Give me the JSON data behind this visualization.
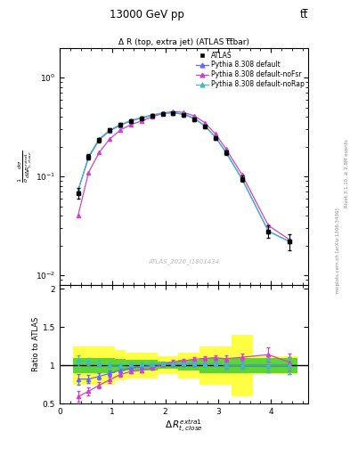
{
  "title_top": "13000 GeV pp",
  "title_top_right": "tt̅",
  "plot_title": "Δ R (top, extra jet) (ATLAS t̅t̅bar)",
  "watermark": "ATLAS_2020_I1801434",
  "right_label": "mcplots.cern.ch [arXiv:1306.3436]",
  "right_label2": "Rivet 3.1.10, ≥ 2.8M events",
  "x_data": [
    0.35,
    0.55,
    0.75,
    0.95,
    1.15,
    1.35,
    1.55,
    1.75,
    1.95,
    2.15,
    2.35,
    2.55,
    2.75,
    2.95,
    3.15,
    3.45,
    3.95,
    4.35
  ],
  "atlas_y": [
    0.068,
    0.16,
    0.235,
    0.295,
    0.335,
    0.365,
    0.39,
    0.415,
    0.43,
    0.435,
    0.42,
    0.38,
    0.32,
    0.245,
    0.175,
    0.095,
    0.028,
    0.022
  ],
  "atlas_yerr": [
    0.008,
    0.01,
    0.012,
    0.012,
    0.012,
    0.013,
    0.013,
    0.013,
    0.014,
    0.014,
    0.013,
    0.013,
    0.012,
    0.011,
    0.01,
    0.007,
    0.004,
    0.004
  ],
  "py_default_y": [
    0.072,
    0.155,
    0.235,
    0.29,
    0.33,
    0.365,
    0.39,
    0.415,
    0.435,
    0.44,
    0.425,
    0.385,
    0.325,
    0.25,
    0.175,
    0.095,
    0.028,
    0.022
  ],
  "py_noFsr_y": [
    0.04,
    0.11,
    0.175,
    0.24,
    0.295,
    0.335,
    0.365,
    0.4,
    0.435,
    0.455,
    0.445,
    0.41,
    0.35,
    0.27,
    0.19,
    0.105,
    0.032,
    0.023
  ],
  "py_noRap_y": [
    0.072,
    0.16,
    0.24,
    0.295,
    0.335,
    0.37,
    0.395,
    0.42,
    0.44,
    0.445,
    0.43,
    0.39,
    0.325,
    0.25,
    0.175,
    0.095,
    0.028,
    0.022
  ],
  "ratio_default": [
    0.82,
    0.82,
    0.855,
    0.895,
    0.935,
    0.965,
    0.98,
    1.0,
    1.01,
    1.01,
    1.012,
    1.013,
    1.016,
    1.02,
    1.0,
    1.0,
    1.0,
    1.0
  ],
  "ratio_noFsr": [
    0.59,
    0.66,
    0.74,
    0.81,
    0.88,
    0.92,
    0.936,
    0.964,
    1.012,
    1.046,
    1.06,
    1.08,
    1.09,
    1.1,
    1.086,
    1.105,
    1.14,
    1.04
  ],
  "ratio_noRap": [
    1.06,
    1.05,
    1.02,
    1.0,
    1.0,
    1.013,
    1.013,
    1.012,
    1.023,
    1.023,
    1.024,
    1.026,
    1.016,
    1.02,
    1.0,
    1.0,
    1.0,
    1.0
  ],
  "ratio_default_err": [
    0.07,
    0.05,
    0.04,
    0.035,
    0.03,
    0.028,
    0.025,
    0.022,
    0.022,
    0.022,
    0.022,
    0.024,
    0.026,
    0.03,
    0.04,
    0.05,
    0.09,
    0.11
  ],
  "ratio_noFsr_err": [
    0.07,
    0.05,
    0.04,
    0.035,
    0.03,
    0.028,
    0.025,
    0.022,
    0.022,
    0.022,
    0.022,
    0.024,
    0.026,
    0.03,
    0.04,
    0.05,
    0.09,
    0.11
  ],
  "ratio_noRap_err": [
    0.07,
    0.05,
    0.04,
    0.035,
    0.03,
    0.028,
    0.025,
    0.022,
    0.022,
    0.022,
    0.022,
    0.024,
    0.026,
    0.03,
    0.04,
    0.05,
    0.09,
    0.11
  ],
  "bin_edges": [
    0.25,
    0.45,
    0.65,
    0.85,
    1.05,
    1.25,
    1.45,
    1.65,
    1.85,
    2.05,
    2.25,
    2.45,
    2.65,
    2.85,
    3.05,
    3.25,
    3.65,
    4.25,
    4.5
  ],
  "green_low": [
    0.9,
    0.9,
    0.9,
    0.9,
    0.92,
    0.93,
    0.93,
    0.93,
    0.95,
    0.95,
    0.93,
    0.93,
    0.9,
    0.9,
    0.9,
    0.9,
    0.9,
    0.9
  ],
  "green_high": [
    1.1,
    1.1,
    1.1,
    1.1,
    1.08,
    1.07,
    1.07,
    1.07,
    1.05,
    1.05,
    1.07,
    1.07,
    1.1,
    1.1,
    1.1,
    1.1,
    1.1,
    1.1
  ],
  "yellow_low": [
    0.75,
    0.75,
    0.75,
    0.75,
    0.8,
    0.83,
    0.83,
    0.83,
    0.88,
    0.88,
    0.83,
    0.83,
    0.75,
    0.75,
    0.75,
    0.6,
    0.88,
    0.88
  ],
  "yellow_high": [
    1.25,
    1.25,
    1.25,
    1.25,
    1.2,
    1.17,
    1.17,
    1.17,
    1.12,
    1.12,
    1.17,
    1.17,
    1.25,
    1.25,
    1.25,
    1.4,
    1.12,
    1.12
  ],
  "color_default": "#6666ff",
  "color_noFsr": "#cc44cc",
  "color_noRap": "#44bbbb",
  "xlim": [
    0.0,
    4.7
  ],
  "ylim_main": [
    0.008,
    2.0
  ],
  "ylim_ratio": [
    0.5,
    2.05
  ],
  "yticks_ratio": [
    0.5,
    1.0,
    1.5,
    2.0
  ],
  "xticks": [
    0,
    1,
    2,
    3,
    4
  ]
}
